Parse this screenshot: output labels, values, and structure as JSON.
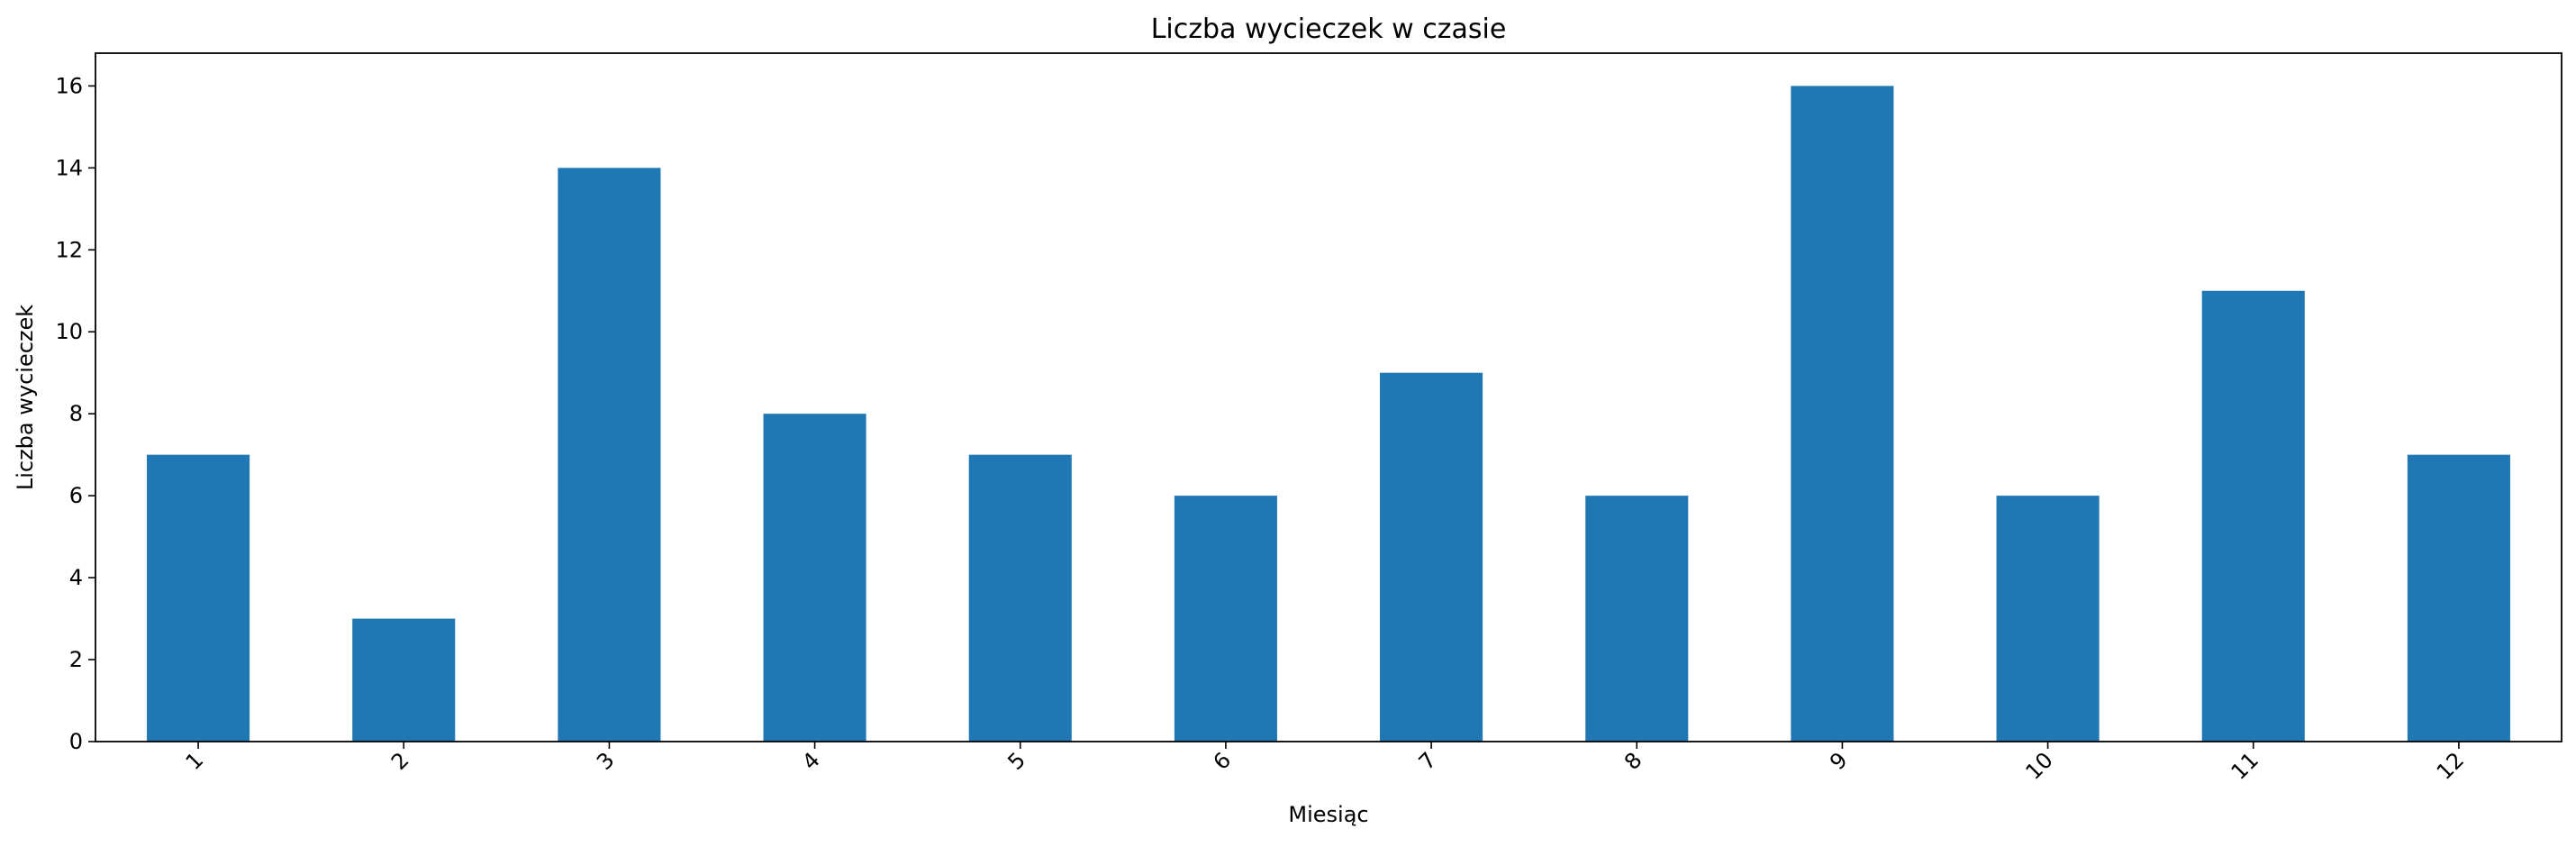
{
  "chart_data": {
    "type": "bar",
    "title": "Liczba wycieczek w czasie",
    "xlabel": "Miesiąc",
    "ylabel": "Liczba wycieczek",
    "categories": [
      "1",
      "2",
      "3",
      "4",
      "5",
      "6",
      "7",
      "8",
      "9",
      "10",
      "11",
      "12"
    ],
    "values": [
      7,
      3,
      14,
      8,
      7,
      6,
      9,
      6,
      16,
      6,
      11,
      7
    ],
    "ylim": [
      0,
      16.8
    ],
    "yticks": [
      0,
      2,
      4,
      6,
      8,
      10,
      12,
      14,
      16
    ],
    "x_tick_rotation": 45,
    "grid": false,
    "legend": "none",
    "bar_color": "#1f77b4"
  }
}
